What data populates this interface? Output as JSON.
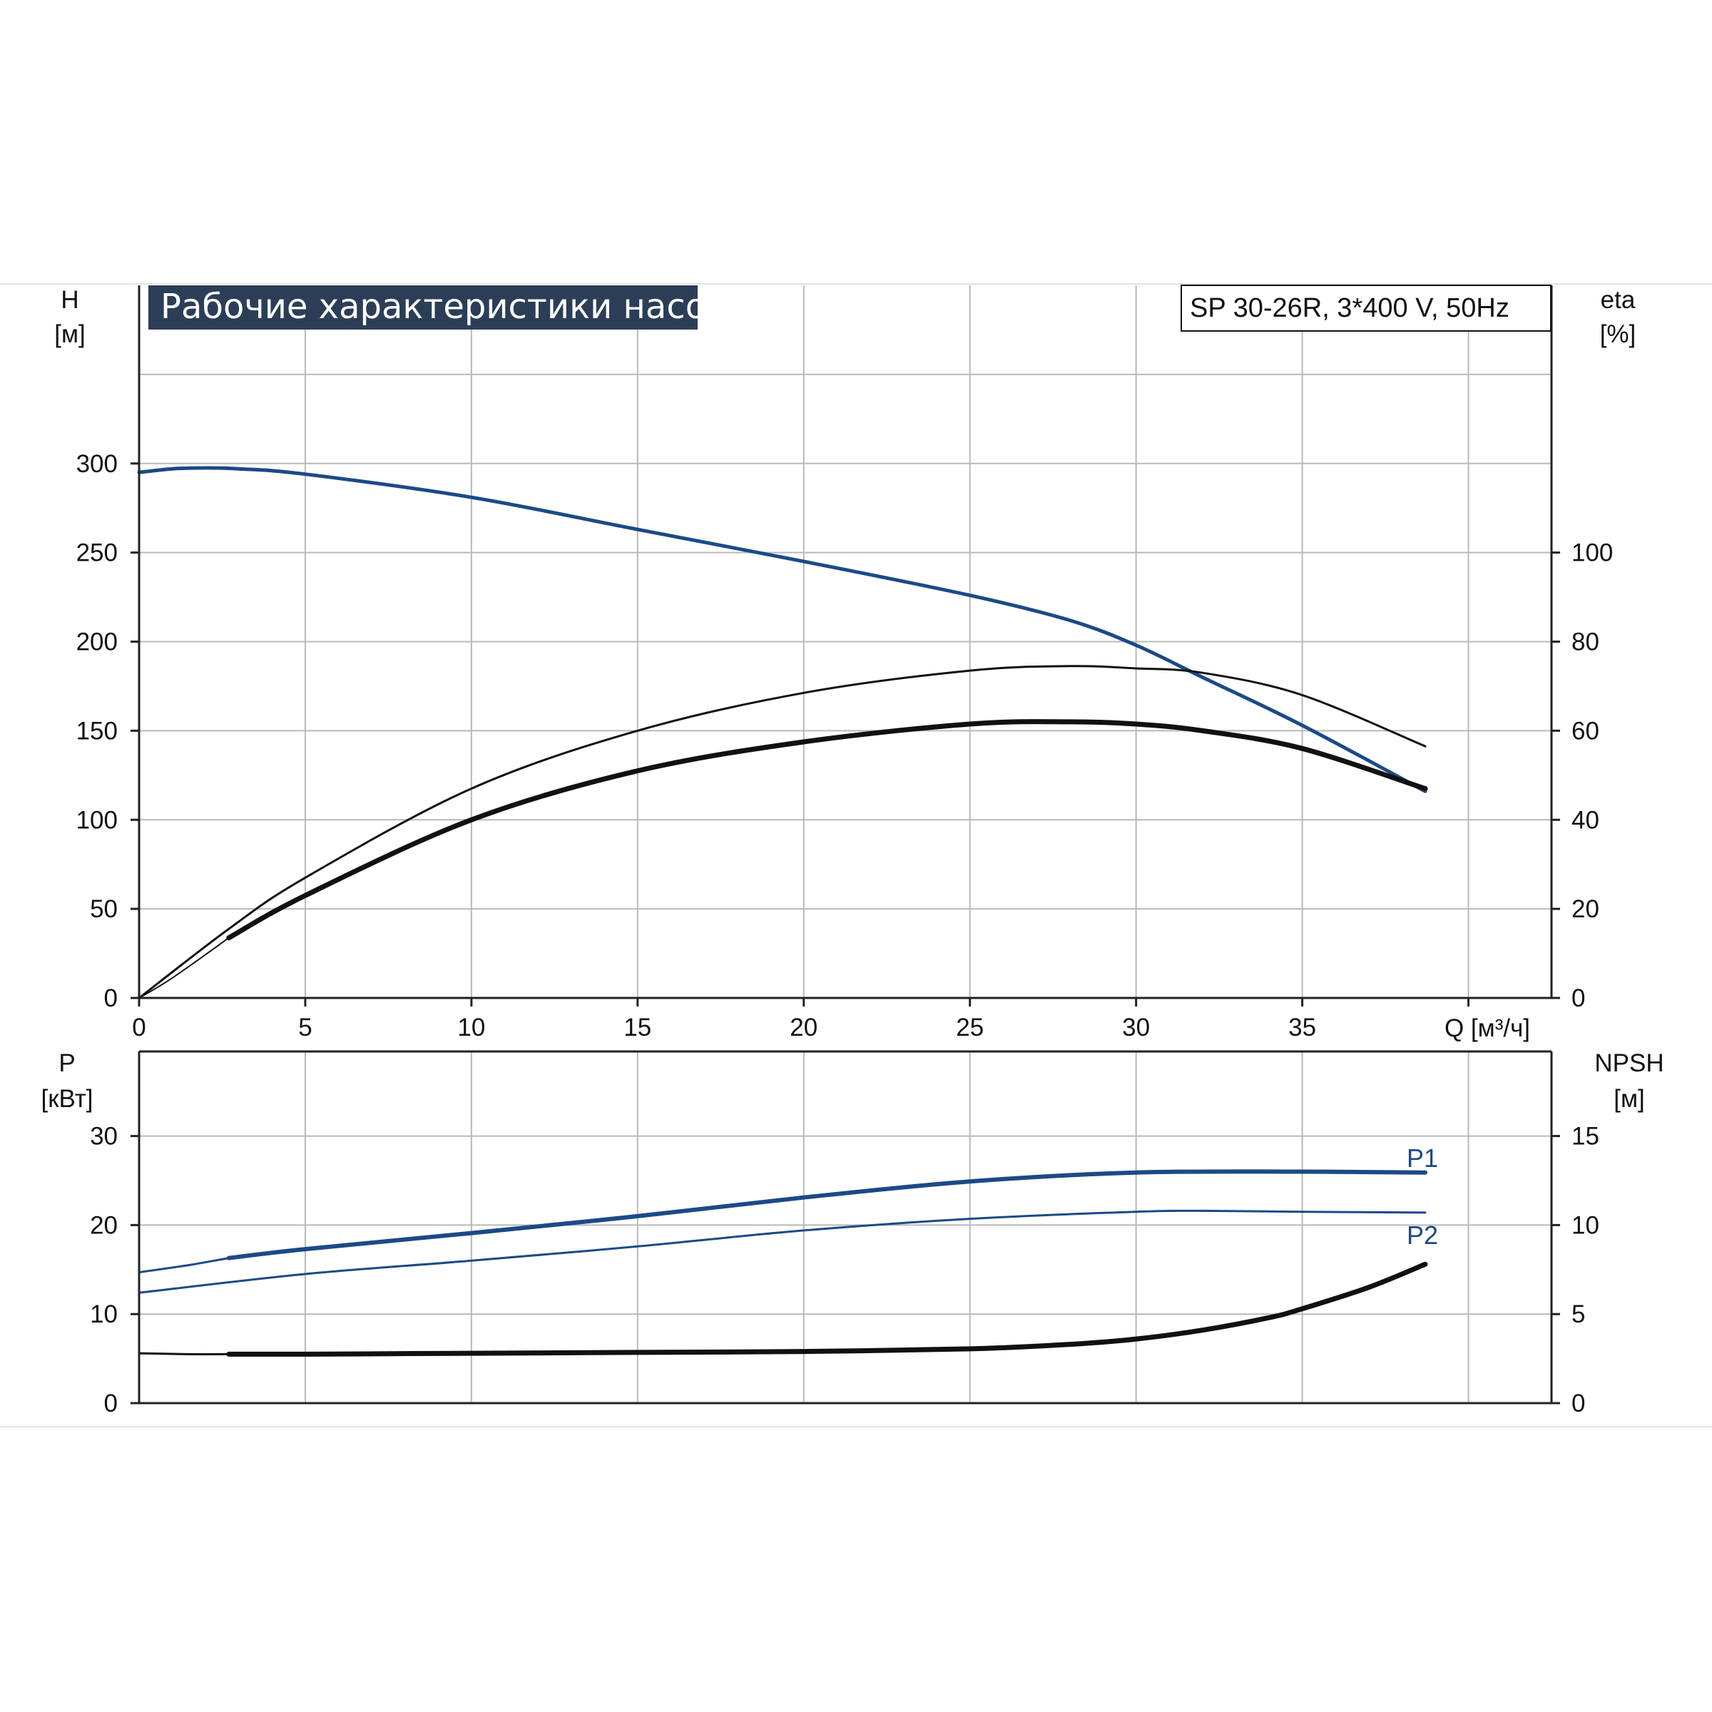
{
  "colors": {
    "blue": "#1b4a86",
    "black": "#111111",
    "grid": "#b9b9b9",
    "title_bg": "#2c3e57"
  },
  "header": {
    "title": "Рабочие характеристики насоса",
    "model": "SP 30-26R, 3*400 V, 50Hz"
  },
  "chart_data": [
    {
      "type": "line",
      "name": "upper",
      "x_axis": {
        "label": "Q [м³/ч]",
        "range": [
          0,
          42.5
        ],
        "ticks": [
          0,
          5,
          10,
          15,
          20,
          25,
          30,
          35
        ]
      },
      "y_left": {
        "label_line1": "H",
        "label_line2": "[м]",
        "range": [
          0,
          400
        ],
        "ticks": [
          0,
          50,
          100,
          150,
          200,
          250,
          300
        ]
      },
      "y_right": {
        "label_line1": "eta",
        "label_line2": "[%]",
        "range": [
          0,
          160
        ],
        "ticks": [
          0,
          20,
          40,
          60,
          80,
          100
        ]
      },
      "grid": true,
      "series": [
        {
          "id": "H",
          "axis": "left",
          "color_key": "blue",
          "width": 5,
          "points": [
            [
              0,
              295
            ],
            [
              1,
              297
            ],
            [
              2,
              297.5
            ],
            [
              3,
              297
            ],
            [
              5,
              294
            ],
            [
              10,
              281
            ],
            [
              15,
              263
            ],
            [
              20,
              245
            ],
            [
              25,
              226
            ],
            [
              28,
              212
            ],
            [
              30,
              198
            ],
            [
              32,
              180
            ],
            [
              35,
              153
            ],
            [
              38.7,
              116
            ]
          ]
        },
        {
          "id": "eta-thin",
          "axis": "right",
          "color_key": "black",
          "width": 3,
          "points": [
            [
              0,
              0
            ],
            [
              2.7,
              15.5
            ],
            [
              5,
              27
            ],
            [
              10,
              47
            ],
            [
              15,
              60
            ],
            [
              20,
              68.5
            ],
            [
              25,
              73.5
            ],
            [
              28,
              74.5
            ],
            [
              30,
              74
            ],
            [
              32,
              73
            ],
            [
              35,
              68
            ],
            [
              38.7,
              56.5
            ]
          ]
        },
        {
          "id": "eta-thick",
          "axis": "right",
          "color_key": "black",
          "width": 7,
          "points": [
            [
              2.7,
              13.5
            ],
            [
              5,
              23
            ],
            [
              10,
              40
            ],
            [
              15,
              51
            ],
            [
              20,
              57.5
            ],
            [
              25,
              61.5
            ],
            [
              28,
              62
            ],
            [
              30,
              61.5
            ],
            [
              32,
              60
            ],
            [
              35,
              56
            ],
            [
              38.7,
              47
            ]
          ]
        },
        {
          "id": "eta-thin-start",
          "axis": "right",
          "color_key": "black",
          "width": 2,
          "points": [
            [
              0,
              0
            ],
            [
              1,
              4.5
            ],
            [
              2.7,
              13.5
            ]
          ]
        }
      ]
    },
    {
      "type": "line",
      "name": "lower",
      "x_axis": {
        "range": [
          0,
          42.5
        ]
      },
      "y_left": {
        "label_line1": "P",
        "label_line2": "[кВт]",
        "range": [
          0,
          39.5
        ],
        "ticks": [
          0,
          10,
          20,
          30
        ]
      },
      "y_right": {
        "label_line1": "NPSH",
        "label_line2": "[м]",
        "range": [
          0,
          19.75
        ],
        "ticks": [
          0,
          5,
          10,
          15
        ]
      },
      "grid": true,
      "series": [
        {
          "id": "P1",
          "name": "P1",
          "axis": "left",
          "color_key": "blue",
          "width": 6,
          "points": [
            [
              2.7,
              16.3
            ],
            [
              5,
              17.3
            ],
            [
              10,
              19.1
            ],
            [
              15,
              21
            ],
            [
              20,
              23.1
            ],
            [
              25,
              24.9
            ],
            [
              30,
              25.9
            ],
            [
              35,
              26
            ],
            [
              38.7,
              25.9
            ]
          ]
        },
        {
          "id": "P1-start",
          "axis": "left",
          "color_key": "blue",
          "width": 3,
          "points": [
            [
              0,
              14.7
            ],
            [
              1.5,
              15.5
            ],
            [
              2.7,
              16.3
            ]
          ]
        },
        {
          "id": "P2",
          "name": "P2",
          "axis": "left",
          "color_key": "blue",
          "width": 3,
          "points": [
            [
              0,
              12.4
            ],
            [
              5,
              14.5
            ],
            [
              10,
              16
            ],
            [
              15,
              17.6
            ],
            [
              20,
              19.4
            ],
            [
              25,
              20.7
            ],
            [
              30,
              21.5
            ],
            [
              32,
              21.6
            ],
            [
              35,
              21.5
            ],
            [
              38.7,
              21.4
            ]
          ]
        },
        {
          "id": "NPSH",
          "axis": "right",
          "color_key": "black",
          "width": 7,
          "points": [
            [
              2.7,
              2.75
            ],
            [
              5,
              2.75
            ],
            [
              10,
              2.8
            ],
            [
              15,
              2.85
            ],
            [
              20,
              2.9
            ],
            [
              25,
              3.05
            ],
            [
              28,
              3.3
            ],
            [
              30,
              3.6
            ],
            [
              32,
              4.1
            ],
            [
              34,
              4.8
            ],
            [
              35,
              5.3
            ],
            [
              37,
              6.5
            ],
            [
              38.7,
              7.8
            ]
          ]
        },
        {
          "id": "NPSH-start",
          "axis": "right",
          "color_key": "black",
          "width": 3,
          "points": [
            [
              0,
              2.8
            ],
            [
              1.5,
              2.75
            ],
            [
              2.7,
              2.75
            ]
          ]
        }
      ]
    }
  ]
}
